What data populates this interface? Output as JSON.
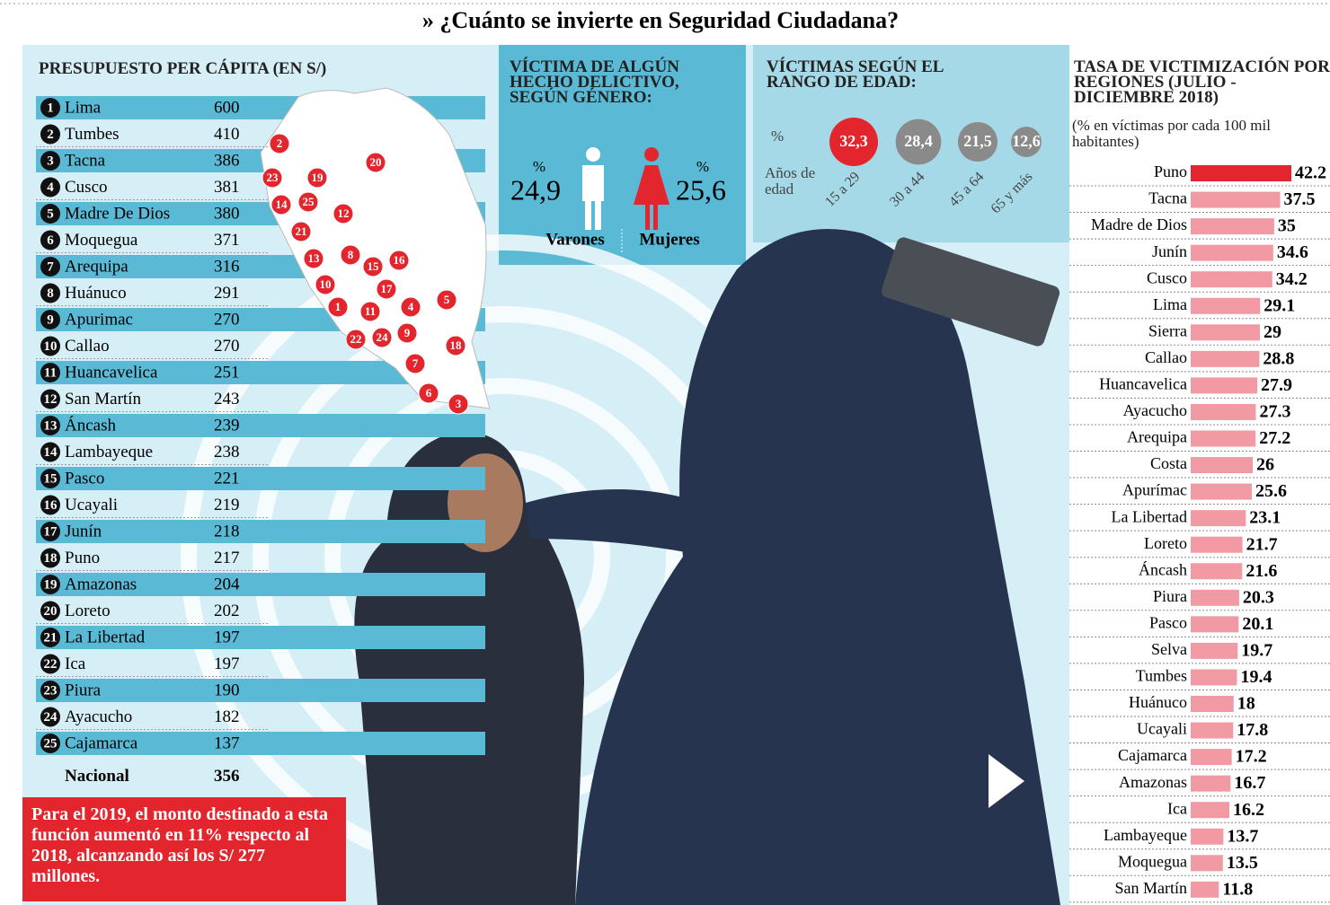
{
  "title": "» ¿Cuánto se invierte en Seguridad Ciudadana?",
  "budget": {
    "title": "PRESUPUESTO PER CÁPITA (EN S/)",
    "rows": [
      [
        1,
        "Lima",
        600
      ],
      [
        2,
        "Tumbes",
        410
      ],
      [
        3,
        "Tacna",
        386
      ],
      [
        4,
        "Cusco",
        381
      ],
      [
        5,
        "Madre De Dios",
        380
      ],
      [
        6,
        "Moquegua",
        371
      ],
      [
        7,
        "Arequipa",
        316
      ],
      [
        8,
        "Huánuco",
        291
      ],
      [
        9,
        "Apurimac",
        270
      ],
      [
        10,
        "Callao",
        270
      ],
      [
        11,
        "Huancavelica",
        251
      ],
      [
        12,
        "San Martín",
        243
      ],
      [
        13,
        "Áncash",
        239
      ],
      [
        14,
        "Lambayeque",
        238
      ],
      [
        15,
        "Pasco",
        221
      ],
      [
        16,
        "Ucayali",
        219
      ],
      [
        17,
        "Junín",
        218
      ],
      [
        18,
        "Puno",
        217
      ],
      [
        19,
        "Amazonas",
        204
      ],
      [
        20,
        "Loreto",
        202
      ],
      [
        21,
        "La Libertad",
        197
      ],
      [
        22,
        "Ica",
        197
      ],
      [
        23,
        "Piura",
        190
      ],
      [
        24,
        "Ayacucho",
        182
      ],
      [
        25,
        "Cajamarca",
        137
      ]
    ],
    "total": [
      "Nacional",
      356
    ]
  },
  "note": "Para el 2019, el monto destinado a esta función aumentó en 11% respecto al 2018, alcanzando así los S/ 277 millones.",
  "chart_data": [
    {
      "type": "pictogram",
      "title": "VÍCTIMA DE ALGÚN HECHO DELICTIVO, SEGÚN GÉNERO:",
      "unit": "%",
      "categories": [
        "Varones",
        "Mujeres"
      ],
      "values": [
        24.9,
        25.6
      ],
      "value_labels": [
        "24,9",
        "25,6"
      ],
      "colors": [
        "#ffffff",
        "#e3262d"
      ]
    },
    {
      "type": "bubble",
      "title": "VÍCTIMAS SEGÚN EL RANGO DE EDAD:",
      "unit": "%",
      "x_label": "Años de edad",
      "categories": [
        "15 a 29",
        "30 a 44",
        "45 a 64",
        "65 y más"
      ],
      "values": [
        32.3,
        28.4,
        21.5,
        12.6
      ],
      "value_labels": [
        "32,3",
        "28,4",
        "21,5",
        "12,6"
      ],
      "colors": [
        "#e3262d",
        "#8a8a8a",
        "#8a8a8a",
        "#8a8a8a"
      ]
    },
    {
      "type": "bar",
      "orientation": "horizontal",
      "title": "TASA DE VICTIMIZACIÓN POR REGIONES (JULIO - DICIEMBRE 2018)",
      "subtitle": "(% en víctimas por cada 100 mil habitantes)",
      "categories": [
        "Puno",
        "Tacna",
        "Madre de Dios",
        "Junín",
        "Cusco",
        "Lima",
        "Sierra",
        "Callao",
        "Huancavelica",
        "Ayacucho",
        "Arequipa",
        "Costa",
        "Apurímac",
        "La Libertad",
        "Loreto",
        "Áncash",
        "Piura",
        "Pasco",
        "Selva",
        "Tumbes",
        "Huánuco",
        "Ucayali",
        "Cajamarca",
        "Amazonas",
        "Ica",
        "Lambayeque",
        "Moquegua",
        "San Martín"
      ],
      "values": [
        42.2,
        37.5,
        35,
        34.6,
        34.2,
        29.1,
        29,
        28.8,
        27.9,
        27.3,
        27.2,
        26,
        25.6,
        23.1,
        21.7,
        21.6,
        20.3,
        20.1,
        19.7,
        19.4,
        18,
        17.8,
        17.2,
        16.7,
        16.2,
        13.7,
        13.5,
        11.8
      ],
      "colors": [
        "#e3262d",
        "#f29aa3",
        "#f29aa3",
        "#f29aa3",
        "#f29aa3",
        "#f29aa3",
        "#f29aa3",
        "#f29aa3",
        "#f29aa3",
        "#f29aa3",
        "#f29aa3",
        "#f29aa3",
        "#f29aa3",
        "#f29aa3",
        "#f29aa3",
        "#f29aa3",
        "#f29aa3",
        "#f29aa3",
        "#f29aa3",
        "#f29aa3",
        "#f29aa3",
        "#f29aa3",
        "#f29aa3",
        "#f29aa3",
        "#f29aa3",
        "#f29aa3",
        "#f29aa3",
        "#f29aa3"
      ]
    }
  ]
}
